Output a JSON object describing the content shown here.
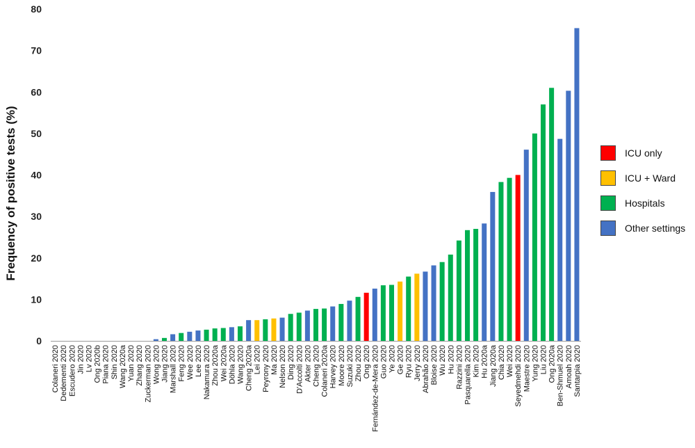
{
  "chart_data": {
    "type": "bar",
    "ylabel": "Frequency of positive tests (%)",
    "xlabel": "",
    "ylim": [
      0,
      80
    ],
    "yticks": [
      0,
      10,
      20,
      30,
      40,
      50,
      60,
      70,
      80
    ],
    "grid": false,
    "legend_position": "right",
    "categories_color": {
      "ICU only": "#ff0000",
      "ICU + Ward": "#ffc000",
      "Hospitals": "#00b050",
      "Other settings": "#4472c4"
    },
    "legend": [
      {
        "label": "ICU only",
        "color": "#ff0000"
      },
      {
        "label": "ICU + Ward",
        "color": "#ffc000"
      },
      {
        "label": "Hospitals",
        "color": "#00b050"
      },
      {
        "label": "Other settings",
        "color": "#4472c4"
      }
    ],
    "bars": [
      {
        "label": "Colaneri 2020",
        "value": 0,
        "setting": "Hospitals"
      },
      {
        "label": "Dedementi 2020",
        "value": 0,
        "setting": "Hospitals"
      },
      {
        "label": "Escudero 2020",
        "value": 0,
        "setting": "Hospitals"
      },
      {
        "label": "Jin 2020",
        "value": 0,
        "setting": "Hospitals"
      },
      {
        "label": "Lv 2020",
        "value": 0,
        "setting": "Hospitals"
      },
      {
        "label": "Ong 2020b",
        "value": 0,
        "setting": "Hospitals"
      },
      {
        "label": "Piana 2020",
        "value": 0,
        "setting": "Hospitals"
      },
      {
        "label": "Shin 2020",
        "value": 0,
        "setting": "Hospitals"
      },
      {
        "label": "Wang 2020a",
        "value": 0,
        "setting": "Hospitals"
      },
      {
        "label": "Yuan 2020",
        "value": 0,
        "setting": "Hospitals"
      },
      {
        "label": "Zhang 2020",
        "value": 0,
        "setting": "Hospitals"
      },
      {
        "label": "Zuckerman 2020",
        "value": 0,
        "setting": "Hospitals"
      },
      {
        "label": "Wong 2020",
        "value": 0.4,
        "setting": "Other settings"
      },
      {
        "label": "Jiang 2020",
        "value": 0.7,
        "setting": "Hospitals"
      },
      {
        "label": "Marshall 2020",
        "value": 1.6,
        "setting": "Other settings"
      },
      {
        "label": "Feng 2020",
        "value": 1.9,
        "setting": "Hospitals"
      },
      {
        "label": "Wee 2020",
        "value": 2.2,
        "setting": "Other settings"
      },
      {
        "label": "Lee 2020",
        "value": 2.5,
        "setting": "Other settings"
      },
      {
        "label": "Nakamura 2020",
        "value": 2.7,
        "setting": "Hospitals"
      },
      {
        "label": "Zhou 2020a",
        "value": 3.0,
        "setting": "Hospitals"
      },
      {
        "label": "Wei 2020a",
        "value": 3.1,
        "setting": "Hospitals"
      },
      {
        "label": "Döhla 2020",
        "value": 3.3,
        "setting": "Other settings"
      },
      {
        "label": "Wang 2020",
        "value": 3.5,
        "setting": "Hospitals"
      },
      {
        "label": "Cheng 2020a",
        "value": 5.0,
        "setting": "Other settings"
      },
      {
        "label": "Lei 2020",
        "value": 5.0,
        "setting": "ICU + Ward"
      },
      {
        "label": "Peyrony 2020",
        "value": 5.2,
        "setting": "Hospitals"
      },
      {
        "label": "Ma 2020",
        "value": 5.4,
        "setting": "ICU + Ward"
      },
      {
        "label": "Nelson 2020",
        "value": 5.6,
        "setting": "Other settings"
      },
      {
        "label": "Ding 2020",
        "value": 6.5,
        "setting": "Hospitals"
      },
      {
        "label": "D'Accolti 2020",
        "value": 6.8,
        "setting": "Hospitals"
      },
      {
        "label": "Akter 2020",
        "value": 7.3,
        "setting": "Other settings"
      },
      {
        "label": "Cheng 2020",
        "value": 7.7,
        "setting": "Hospitals"
      },
      {
        "label": "Colaneri 2020a",
        "value": 7.8,
        "setting": "Hospitals"
      },
      {
        "label": "Harvey 2020",
        "value": 8.3,
        "setting": "Other settings"
      },
      {
        "label": "Moore 2020",
        "value": 8.9,
        "setting": "Hospitals"
      },
      {
        "label": "Suzuki 2020",
        "value": 9.7,
        "setting": "Other settings"
      },
      {
        "label": "Zhou 2020",
        "value": 10.6,
        "setting": "Hospitals"
      },
      {
        "label": "Ong 2020",
        "value": 11.6,
        "setting": "ICU only"
      },
      {
        "label": "Fernández-de-Mera 2020",
        "value": 12.6,
        "setting": "Other settings"
      },
      {
        "label": "Guo 2020",
        "value": 13.4,
        "setting": "Hospitals"
      },
      {
        "label": "Ye 2020",
        "value": 13.5,
        "setting": "Hospitals"
      },
      {
        "label": "Ge 2020",
        "value": 14.3,
        "setting": "ICU + Ward"
      },
      {
        "label": "Ryu 2020",
        "value": 15.5,
        "setting": "Hospitals"
      },
      {
        "label": "Jerry 2020",
        "value": 16.2,
        "setting": "ICU + Ward"
      },
      {
        "label": "Abrahão 2020",
        "value": 16.7,
        "setting": "Other settings"
      },
      {
        "label": "Bloise 2020",
        "value": 18.2,
        "setting": "Other settings"
      },
      {
        "label": "Wu 2020",
        "value": 19.0,
        "setting": "Hospitals"
      },
      {
        "label": "Hu 2020",
        "value": 20.8,
        "setting": "Hospitals"
      },
      {
        "label": "Razzini 2020",
        "value": 24.2,
        "setting": "Hospitals"
      },
      {
        "label": "Pasquarella 2020",
        "value": 26.7,
        "setting": "Hospitals"
      },
      {
        "label": "Kim 2020",
        "value": 27.0,
        "setting": "Hospitals"
      },
      {
        "label": "Hu 2020a",
        "value": 28.3,
        "setting": "Other settings"
      },
      {
        "label": "Jiang 2020a",
        "value": 35.9,
        "setting": "Other settings"
      },
      {
        "label": "Chia 2020",
        "value": 38.3,
        "setting": "Hospitals"
      },
      {
        "label": "Wei 2020",
        "value": 39.3,
        "setting": "Hospitals"
      },
      {
        "label": "Seyedmehdi 2020",
        "value": 40.0,
        "setting": "ICU only"
      },
      {
        "label": "Maestre 2020",
        "value": 46.1,
        "setting": "Other settings"
      },
      {
        "label": "Yung 2020",
        "value": 50.0,
        "setting": "Hospitals"
      },
      {
        "label": "Liu 2020",
        "value": 57.0,
        "setting": "Hospitals"
      },
      {
        "label": "Ong 2020a",
        "value": 61.0,
        "setting": "Hospitals"
      },
      {
        "label": "Ben-Shmuel 2020",
        "value": 48.7,
        "setting": "Other settings"
      },
      {
        "label": "Amoah 2020",
        "value": 60.3,
        "setting": "Other settings"
      },
      {
        "label": "Santarpia 2020",
        "value": 75.4,
        "setting": "Other settings"
      }
    ]
  }
}
